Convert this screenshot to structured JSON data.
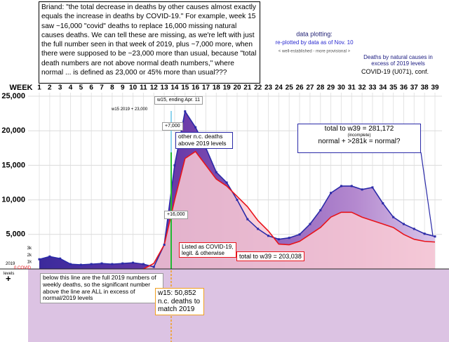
{
  "chart_data": {
    "type": "line",
    "x_label": "WEEK",
    "x": [
      1,
      2,
      3,
      4,
      5,
      6,
      7,
      8,
      9,
      10,
      11,
      12,
      13,
      14,
      15,
      16,
      17,
      18,
      19,
      20,
      21,
      22,
      23,
      24,
      25,
      26,
      27,
      28,
      29,
      30,
      31,
      32,
      33,
      34,
      35,
      36,
      37,
      38,
      39
    ],
    "xlim": [
      1,
      39
    ],
    "ylim": [
      0,
      25000
    ],
    "yticks": [
      {
        "value": 5000,
        "label": "5,000"
      },
      {
        "value": 10000,
        "label": "10,000"
      },
      {
        "value": 15000,
        "label": "15,000"
      },
      {
        "value": 20000,
        "label": "20,000"
      },
      {
        "value": 25000,
        "label": "25,000"
      }
    ],
    "small_yticks": [
      {
        "value": 1000,
        "label": "1k"
      },
      {
        "value": 2000,
        "label": "2k"
      },
      {
        "value": 3000,
        "label": "3k"
      }
    ],
    "grid": true,
    "series": [
      {
        "name": "Deaths by natural causes in excess of 2019 levels",
        "color": "#2a2aa8",
        "values": [
          1400,
          1800,
          1500,
          700,
          600,
          700,
          800,
          700,
          800,
          900,
          700,
          300,
          3500,
          15000,
          22800,
          20500,
          17500,
          14000,
          12500,
          10000,
          7200,
          5800,
          4800,
          4300,
          4500,
          5000,
          6500,
          8500,
          11000,
          12000,
          12000,
          11500,
          11800,
          9500,
          7500,
          6500,
          5800,
          5100,
          4700
        ]
      },
      {
        "name": "COVID-19 (U071), conf.",
        "color": "#e8141b",
        "values": [
          null,
          null,
          null,
          null,
          null,
          null,
          null,
          null,
          null,
          null,
          0,
          800,
          3500,
          10000,
          16000,
          17000,
          15000,
          13000,
          12000,
          10500,
          9000,
          7000,
          5500,
          3600,
          3500,
          4000,
          5000,
          6000,
          7500,
          8200,
          8200,
          7500,
          7000,
          6500,
          6000,
          5000,
          4300,
          4000,
          3900
        ]
      }
    ],
    "legend": {
      "title": "data plotting:",
      "subtitle": "re-plotted by data as of Nov. 10",
      "note": "< well-established - more provisional >"
    },
    "quote": "Briand: \"the total decrease in deaths by other causes almost exactly equals the increase in deaths by COVID-19.\" For example, week 15 saw ~16,000 \"covid\" deaths to replace 16,000 missing natural causes deaths. We can tell these are missing, as we're left with just the full number seen in that week of 2019, plus ~7,000 more, when there were supposed to be ~23,000 more than usual, because \"total death numbers are not above normal death numbers,\" where normal ... is defined as 23,000 or 45% more than usual???",
    "annotations": {
      "week_end": "w15, ending Apr. 11",
      "w15_expected": "w15 2019 + 23,000",
      "plus_7000": "+7,000",
      "other_nc": "other n.c. deaths above 2019 levels",
      "plus_16000": "+16,000",
      "listed_covid": "Listed as COVID-19, legit. & otherwise",
      "covid_total": "total to w39 = 203,038",
      "nc_total": "total to w39 = 281,172",
      "incomplete": "(incomplete)",
      "normal_q": "normal + >281k = normal?",
      "below_line": "below this line are the full 2019 numbers of weekly deaths, so the significant number above the line are ALL in excess of normal/2019 levels",
      "w15_match": "w15: 50,852 n.c. deaths to match 2019",
      "baseline_2019": "2019",
      "baseline_levels": "levels",
      "zero_covid": "0 COVID",
      "plus": "+"
    }
  }
}
